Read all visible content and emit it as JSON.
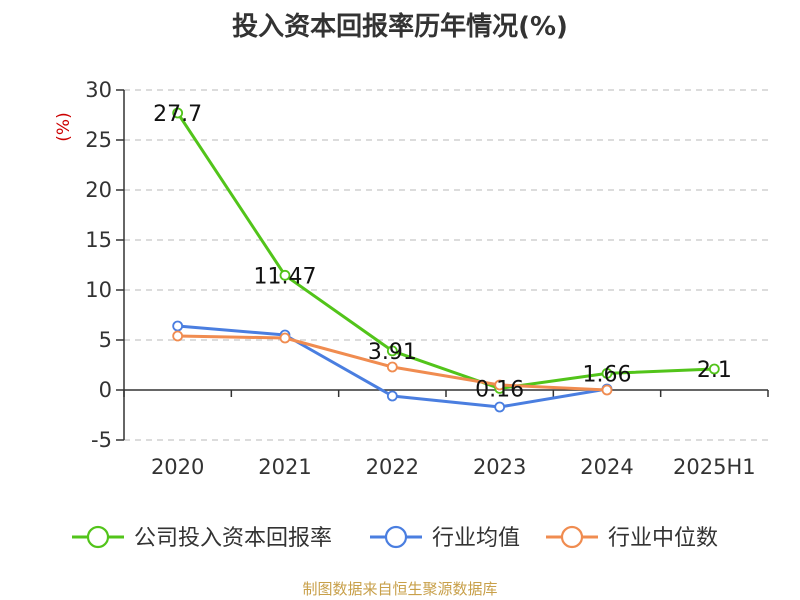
{
  "chart_data": {
    "type": "line",
    "title": "投入资本回报率历年情况(%)",
    "ylabel": "(%)",
    "categories": [
      "2020",
      "2021",
      "2022",
      "2023",
      "2024",
      "2025H1"
    ],
    "ylim": [
      -5,
      30
    ],
    "yticks": [
      30,
      25,
      20,
      15,
      10,
      5,
      0,
      -5
    ],
    "grid": true,
    "legend_position": "bottom",
    "series": [
      {
        "name": "公司投入资本回报率",
        "color": "#52c41a",
        "values": [
          27.7,
          11.47,
          3.91,
          0.16,
          1.66,
          2.1
        ],
        "labels": [
          "27.7",
          "11.47",
          "3.91",
          "0.16",
          "1.66",
          "2.1"
        ]
      },
      {
        "name": "行业均值",
        "color": "#4a7ee0",
        "values": [
          6.4,
          5.5,
          -0.6,
          -1.7,
          0.1,
          null
        ]
      },
      {
        "name": "行业中位数",
        "color": "#f08c50",
        "values": [
          5.4,
          5.2,
          2.3,
          0.5,
          0.0,
          null
        ]
      }
    ],
    "source": "制图数据来自恒生聚源数据库"
  }
}
